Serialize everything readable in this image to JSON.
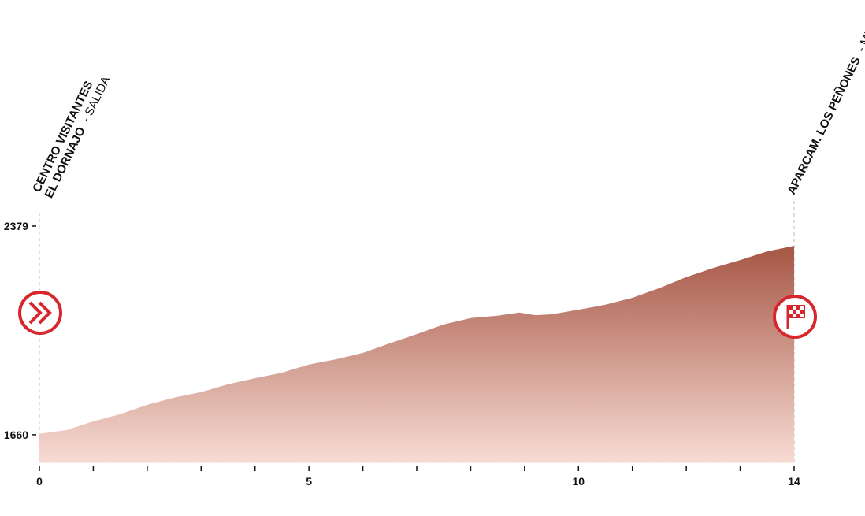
{
  "chart_data": {
    "type": "area",
    "start": {
      "lines": [
        "CENTRO VISITANTES",
        "EL DORNAJO"
      ],
      "suffix": "- SALIDA"
    },
    "finish": {
      "lines": [
        "APARCAM. LOS PEÑONES"
      ],
      "suffix": "- META"
    },
    "x": [
      0,
      0.5,
      1,
      1.5,
      2,
      2.5,
      3,
      3.5,
      4,
      4.5,
      5,
      5.5,
      6,
      6.5,
      7,
      7.5,
      8,
      8.5,
      8.9,
      9.2,
      9.5,
      10,
      10.5,
      11,
      11.5,
      12,
      12.5,
      13,
      13.5,
      14
    ],
    "values": [
      1663,
      1676,
      1706,
      1731,
      1763,
      1788,
      1807,
      1834,
      1855,
      1874,
      1902,
      1920,
      1942,
      1975,
      2007,
      2040,
      2062,
      2070,
      2081,
      2072,
      2075,
      2091,
      2108,
      2132,
      2165,
      2203,
      2235,
      2262,
      2292,
      2311
    ],
    "xlim": [
      0,
      14
    ],
    "xticks": [
      0,
      5,
      10,
      14
    ],
    "xminorticks": [
      1,
      2,
      3,
      4,
      6,
      7,
      8,
      9,
      11,
      12,
      13
    ],
    "ylim": [
      1562,
      2379
    ],
    "yticks": [
      1660,
      2379
    ],
    "colors": {
      "top": "#a65645",
      "bottom": "#f8dcd4",
      "icon": "#d7262d"
    }
  }
}
